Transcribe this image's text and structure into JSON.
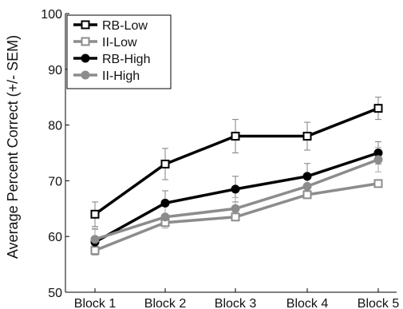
{
  "chart_data": {
    "type": "line",
    "title": "",
    "xlabel": "",
    "ylabel": "Average Percent Correct (+/- SEM)",
    "categories": [
      "Block 1",
      "Block 2",
      "Block 3",
      "Block 4",
      "Block 5"
    ],
    "ylim": [
      50,
      100
    ],
    "yticks": [
      50,
      60,
      70,
      80,
      90,
      100
    ],
    "grid": false,
    "legend_position": "top-left",
    "series": [
      {
        "name": "RB-Low",
        "color": "#000000",
        "marker": "open-square",
        "values": [
          64,
          73,
          78,
          78,
          83
        ],
        "errors": [
          2.2,
          2.8,
          3.0,
          2.5,
          2.0
        ]
      },
      {
        "name": "II-Low",
        "color": "#8c8c8c",
        "marker": "open-square",
        "values": [
          57.5,
          62.5,
          63.5,
          67.5,
          69.5
        ]
      },
      {
        "name": "RB-High",
        "color": "#000000",
        "marker": "filled-circle",
        "values": [
          59,
          66,
          68.5,
          70.8,
          75
        ],
        "errors": [
          2.3,
          2.2,
          2.3,
          2.3,
          2.0
        ]
      },
      {
        "name": "II-High",
        "color": "#8c8c8c",
        "marker": "filled-circle",
        "values": [
          59.5,
          63.5,
          65,
          69,
          73.8
        ],
        "errors": [
          2.0,
          2.0,
          2.0,
          2.0,
          2.2
        ]
      }
    ]
  }
}
